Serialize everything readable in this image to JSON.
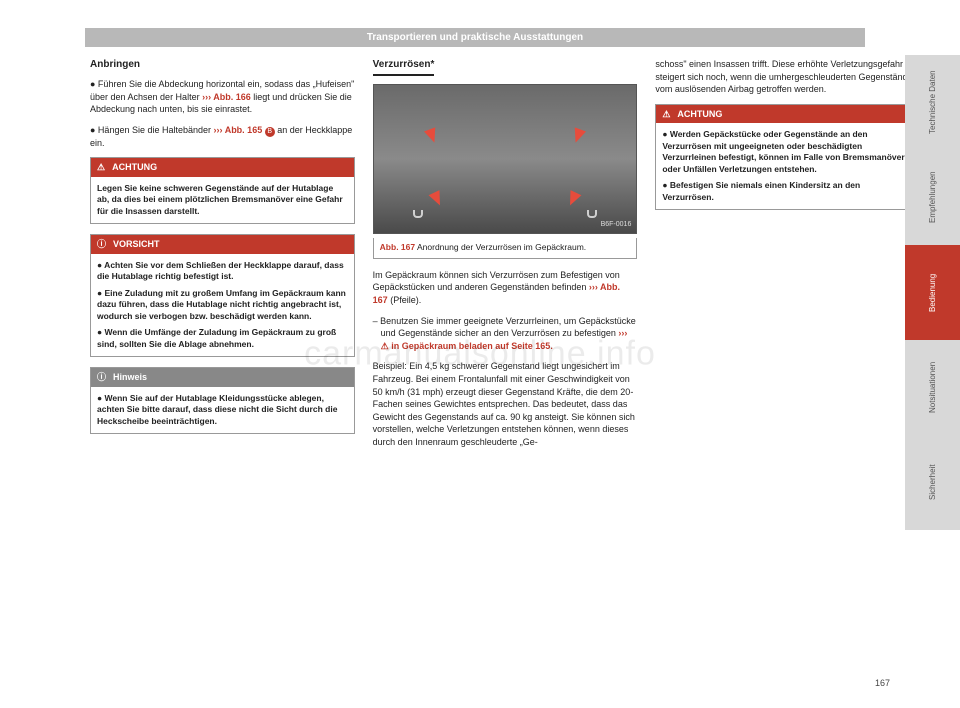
{
  "header": "Transportieren und praktische Ausstattungen",
  "col1": {
    "h_anbringen": "Anbringen",
    "p1a": "● Führen Sie die Abdeckung horizontal ein, sodass das „Hufeisen\" über den Achsen der Halter ",
    "p1ref": "››› Abb. 166",
    "p1b": " liegt und drücken Sie die Abdeckung nach unten, bis sie einrastet.",
    "p2a": "● Hängen Sie die Haltebänder ",
    "p2ref": "››› Abb. 165",
    "p2badge": "B",
    "p2b": " an der Heckklappe ein.",
    "achtung1": {
      "title": "ACHTUNG",
      "body": "Legen Sie keine schweren Gegenstände auf der Hutablage ab, da dies bei einem plötzlichen Bremsmanöver eine Gefahr für die Insassen darstellt."
    },
    "vorsicht": {
      "title": "VORSICHT",
      "b1": "● Achten Sie vor dem Schließen der Heckklappe darauf, dass die Hutablage richtig befestigt ist.",
      "b2": "● Eine Zuladung mit zu großem Umfang im Gepäckraum kann dazu führen, dass die Hutablage nicht richtig angebracht ist, wodurch sie verbogen bzw. beschädigt werden kann.",
      "b3": "● Wenn die Umfänge der Zuladung im Gepäckraum zu groß sind, sollten Sie die Ablage abnehmen."
    },
    "hinweis": {
      "title": "Hinweis",
      "body": "● Wenn Sie auf der Hutablage Kleidungsstücke ablegen, achten Sie bitte darauf, dass diese nicht die Sicht durch die Heckscheibe beeinträchtigen."
    }
  },
  "col2": {
    "title": "Verzurrösen*",
    "fig_label": "B6F-0016",
    "caption_ref": "Abb. 167",
    "caption_text": "  Anordnung der Verzurrösen im Gepäckraum.",
    "p1a": "Im Gepäckraum können sich Verzurrösen zum Befestigen von Gepäckstücken und anderen Gegenständen befinden ",
    "p1ref": "››› Abb. 167",
    "p1b": " (Pfeile).",
    "li1a": "– Benutzen Sie immer geeignete Verzurrleinen, um Gepäckstücke und Gegenstände sicher an den Verzurrösen zu befestigen ",
    "li1ref": "››› ",
    "li1warn": "⚠",
    "li1b": " in Gepäckraum beladen auf Seite 165.",
    "p2": "Beispiel: Ein 4,5 kg schwerer Gegenstand liegt ungesichert im Fahrzeug. Bei einem Frontalunfall mit einer Geschwindigkeit von 50 km/h (31 mph) erzeugt dieser Gegenstand Kräfte, die dem 20-Fachen seines Gewichtes entsprechen. Das bedeutet, dass das Gewicht des Gegenstands auf ca. 90 kg ansteigt. Sie können sich vorstellen, welche Verletzungen entstehen können, wenn dieses durch den Innenraum geschleuderte „Ge-"
  },
  "col3": {
    "p1": "schoss\" einen Insassen trifft. Diese erhöhte Verletzungsgefahr steigert sich noch, wenn die umhergeschleuderten Gegenstände vom auslösenden Airbag getroffen werden.",
    "achtung2": {
      "title": "ACHTUNG",
      "b1": "● Werden Gepäckstücke oder Gegenstände an den Verzurrösen mit ungeeigneten oder beschädigten Verzurrleinen befestigt, können im Falle von Bremsmanövern oder Unfällen Verletzungen entstehen.",
      "b2": "● Befestigen Sie niemals einen Kindersitz an den Verzurrösen."
    }
  },
  "tabs": {
    "t1": "Technische Daten",
    "t2": "Empfehlungen",
    "t3": "Bedienung",
    "t4": "Notsituationen",
    "t5": "Sicherheit"
  },
  "page_num": "167",
  "watermark": "carmanualsonline.info"
}
